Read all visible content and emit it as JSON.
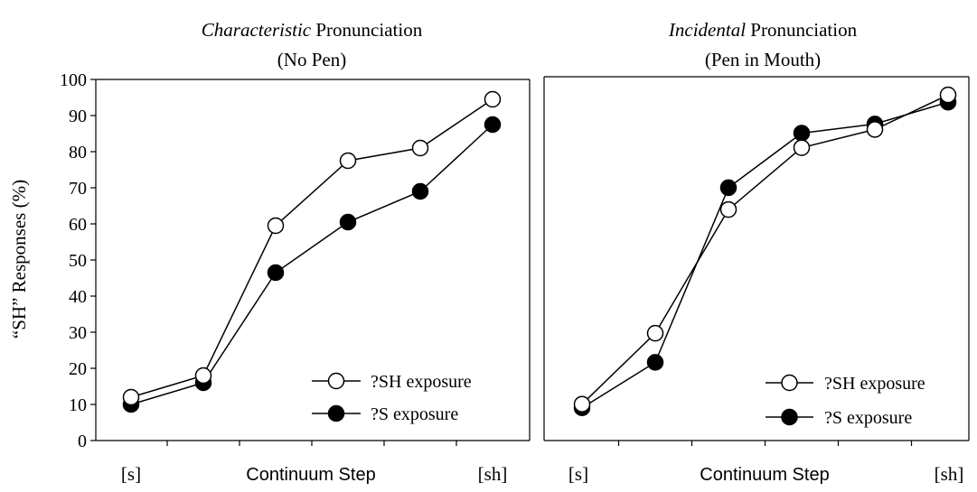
{
  "chart_data": [
    {
      "type": "line",
      "title_italic": "Characteristic",
      "title_rest": " Pronunciation",
      "subtitle": "(No Pen)",
      "ylabel": "“SH” Responses (%)",
      "xlabel": "Continuum Step",
      "x_start_label": "[s]",
      "x_end_label": "[sh]",
      "ylim": [
        0,
        100
      ],
      "yticks": [
        "0",
        "10",
        "20",
        "30",
        "40",
        "50",
        "60",
        "70",
        "80",
        "90",
        "100"
      ],
      "x": [
        1,
        2,
        3,
        4,
        5,
        6
      ],
      "series": [
        {
          "name": "?SH exposure",
          "marker": "open-circle",
          "values": [
            12,
            18,
            59.5,
            77.5,
            81,
            94.5
          ]
        },
        {
          "name": "?S exposure",
          "marker": "filled-circle",
          "values": [
            10,
            16,
            46.5,
            60.5,
            69,
            87.5
          ]
        }
      ],
      "legend": "bottom-right"
    },
    {
      "type": "line",
      "title_italic": "Incidental",
      "title_rest": " Pronunciation",
      "subtitle": "(Pen in Mouth)",
      "xlabel": "Continuum Step",
      "x_start_label": "[s]",
      "x_end_label": "[sh]",
      "ylim": [
        0,
        100
      ],
      "x": [
        1,
        2,
        3,
        4,
        5,
        6
      ],
      "series": [
        {
          "name": "?SH exposure",
          "marker": "open-circle",
          "values": [
            10,
            29.5,
            63.5,
            80.5,
            85.5,
            95
          ]
        },
        {
          "name": "?S exposure",
          "marker": "filled-circle",
          "values": [
            9,
            21.5,
            69.5,
            84.5,
            87,
            93
          ]
        }
      ],
      "legend": "bottom-right"
    }
  ]
}
